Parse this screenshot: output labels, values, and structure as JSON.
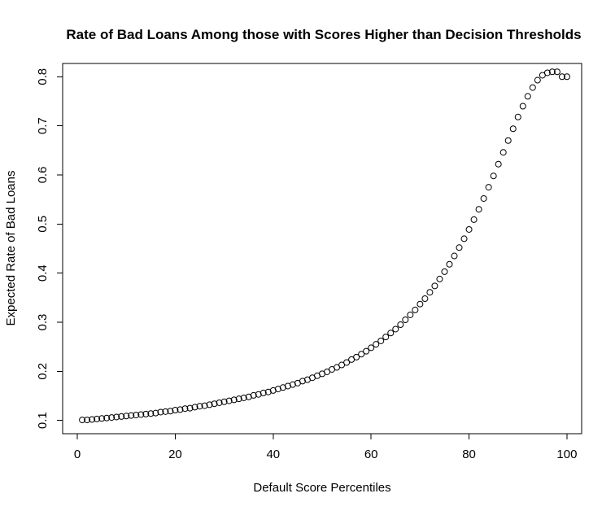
{
  "chart_data": {
    "type": "scatter",
    "title": "Rate of Bad Loans Among those with Scores Higher than Decision Thresholds",
    "xlabel": "Default Score Percentiles",
    "ylabel": "Expected Rate of Bad Loans",
    "xlim": [
      -3,
      103
    ],
    "ylim": [
      0.073,
      0.827
    ],
    "xticks": [
      0,
      20,
      40,
      60,
      80,
      100
    ],
    "xtick_labels": [
      "0",
      "20",
      "40",
      "60",
      "80",
      "100"
    ],
    "yticks": [
      0.1,
      0.2,
      0.3,
      0.4,
      0.5,
      0.6,
      0.7,
      0.8
    ],
    "ytick_labels": [
      "0.1",
      "0.2",
      "0.3",
      "0.4",
      "0.5",
      "0.6",
      "0.7",
      "0.8"
    ],
    "grid": false,
    "marker": "open-circle",
    "x": [
      1,
      2,
      3,
      4,
      5,
      6,
      7,
      8,
      9,
      10,
      11,
      12,
      13,
      14,
      15,
      16,
      17,
      18,
      19,
      20,
      21,
      22,
      23,
      24,
      25,
      26,
      27,
      28,
      29,
      30,
      31,
      32,
      33,
      34,
      35,
      36,
      37,
      38,
      39,
      40,
      41,
      42,
      43,
      44,
      45,
      46,
      47,
      48,
      49,
      50,
      51,
      52,
      53,
      54,
      55,
      56,
      57,
      58,
      59,
      60,
      61,
      62,
      63,
      64,
      65,
      66,
      67,
      68,
      69,
      70,
      71,
      72,
      73,
      74,
      75,
      76,
      77,
      78,
      79,
      80,
      81,
      82,
      83,
      84,
      85,
      86,
      87,
      88,
      89,
      90,
      91,
      92,
      93,
      94,
      95,
      96,
      97,
      98,
      99,
      100
    ],
    "y": [
      0.101,
      0.101,
      0.102,
      0.103,
      0.104,
      0.105,
      0.106,
      0.107,
      0.108,
      0.109,
      0.11,
      0.111,
      0.112,
      0.113,
      0.114,
      0.115,
      0.117,
      0.118,
      0.119,
      0.121,
      0.122,
      0.124,
      0.125,
      0.127,
      0.129,
      0.13,
      0.132,
      0.134,
      0.136,
      0.138,
      0.14,
      0.142,
      0.144,
      0.146,
      0.148,
      0.151,
      0.153,
      0.156,
      0.158,
      0.161,
      0.164,
      0.167,
      0.17,
      0.173,
      0.176,
      0.18,
      0.183,
      0.187,
      0.191,
      0.195,
      0.199,
      0.204,
      0.208,
      0.213,
      0.218,
      0.224,
      0.229,
      0.235,
      0.241,
      0.248,
      0.255,
      0.262,
      0.27,
      0.278,
      0.286,
      0.295,
      0.305,
      0.315,
      0.325,
      0.337,
      0.348,
      0.361,
      0.374,
      0.388,
      0.403,
      0.418,
      0.435,
      0.452,
      0.47,
      0.489,
      0.509,
      0.53,
      0.552,
      0.575,
      0.598,
      0.622,
      0.646,
      0.67,
      0.694,
      0.718,
      0.74,
      0.76,
      0.778,
      0.793,
      0.803,
      0.808,
      0.81,
      0.81,
      0.8,
      0.8
    ]
  }
}
